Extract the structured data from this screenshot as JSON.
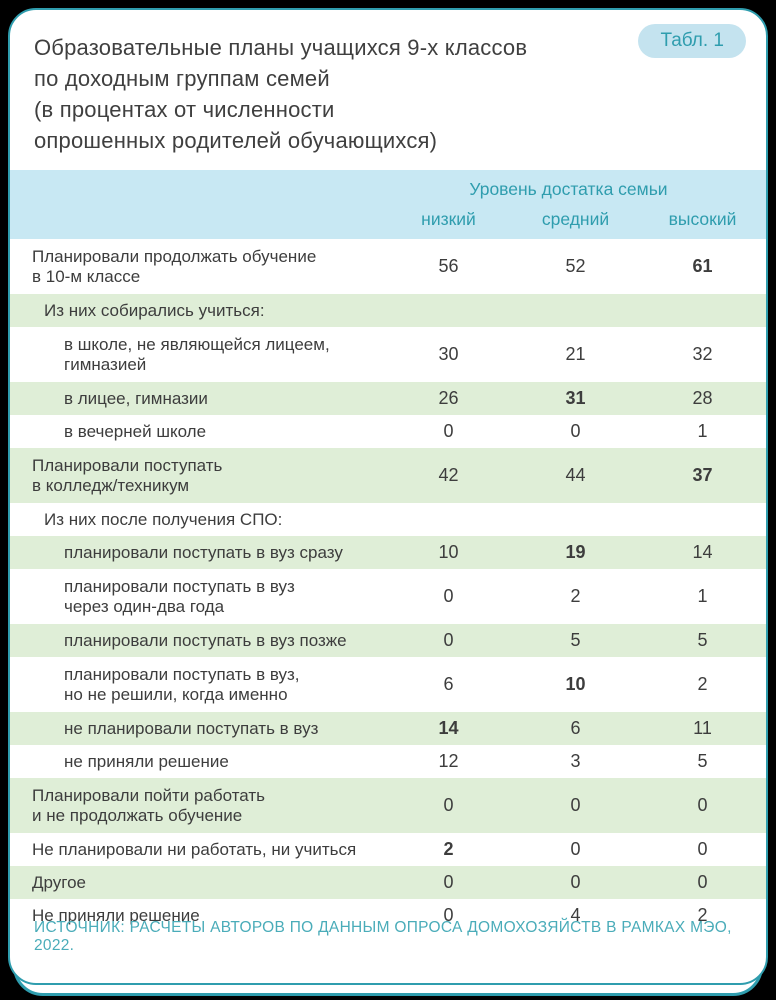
{
  "accent_colors": {
    "teal": "#2f9dae",
    "header_blue": "#c8e8f3",
    "row_green": "#dfeed7",
    "badge_bg": "#c4e3ef",
    "source_teal": "#4aacb9"
  },
  "badge": {
    "label": "Табл. 1"
  },
  "title": "Образовательные планы учащихся 9-х классов\nпо доходным группам семей\n(в процентах от численности\nопрошенных родителей обучающихся)",
  "table": {
    "group_header": "Уровень достатка семьи",
    "columns": [
      "низкий",
      "средний",
      "высокий"
    ],
    "rows": [
      {
        "label": "Планировали продолжать обучение\nв 10-м классе",
        "indent": 0,
        "shade": "white",
        "values": [
          "56",
          "52",
          "61"
        ],
        "bold": [
          false,
          false,
          true
        ]
      },
      {
        "label": "Из них собирались учиться:",
        "indent": 1,
        "shade": "green",
        "values": [
          "",
          "",
          ""
        ],
        "bold": [
          false,
          false,
          false
        ]
      },
      {
        "label": "в школе, не являющейся лицеем,\nгимназией",
        "indent": 2,
        "shade": "white",
        "values": [
          "30",
          "21",
          "32"
        ],
        "bold": [
          false,
          false,
          false
        ]
      },
      {
        "label": "в лицее, гимназии",
        "indent": 2,
        "shade": "green",
        "values": [
          "26",
          "31",
          "28"
        ],
        "bold": [
          false,
          true,
          false
        ]
      },
      {
        "label": "в вечерней школе",
        "indent": 2,
        "shade": "white",
        "values": [
          "0",
          "0",
          "1"
        ],
        "bold": [
          false,
          false,
          false
        ]
      },
      {
        "label": "Планировали поступать\nв колледж/техникум",
        "indent": 0,
        "shade": "green",
        "values": [
          "42",
          "44",
          "37"
        ],
        "bold": [
          false,
          false,
          true
        ]
      },
      {
        "label": "Из них после получения СПО:",
        "indent": 1,
        "shade": "white",
        "values": [
          "",
          "",
          ""
        ],
        "bold": [
          false,
          false,
          false
        ]
      },
      {
        "label": "планировали поступать в вуз сразу",
        "indent": 2,
        "shade": "green",
        "values": [
          "10",
          "19",
          "14"
        ],
        "bold": [
          false,
          true,
          false
        ]
      },
      {
        "label": "планировали поступать в вуз\nчерез один-два года",
        "indent": 2,
        "shade": "white",
        "values": [
          "0",
          "2",
          "1"
        ],
        "bold": [
          false,
          false,
          false
        ]
      },
      {
        "label": "планировали поступать в вуз позже",
        "indent": 2,
        "shade": "green",
        "values": [
          "0",
          "5",
          "5"
        ],
        "bold": [
          false,
          false,
          false
        ]
      },
      {
        "label": "планировали поступать в вуз,\nно не решили, когда именно",
        "indent": 2,
        "shade": "white",
        "values": [
          "6",
          "10",
          "2"
        ],
        "bold": [
          false,
          true,
          false
        ]
      },
      {
        "label": "не планировали поступать в вуз",
        "indent": 2,
        "shade": "green",
        "values": [
          "14",
          "6",
          "11"
        ],
        "bold": [
          true,
          false,
          false
        ]
      },
      {
        "label": "не приняли решение",
        "indent": 2,
        "shade": "white",
        "values": [
          "12",
          "3",
          "5"
        ],
        "bold": [
          false,
          false,
          false
        ]
      },
      {
        "label": "Планировали пойти работать\nи не продолжать обучение",
        "indent": 0,
        "shade": "green",
        "values": [
          "0",
          "0",
          "0"
        ],
        "bold": [
          false,
          false,
          false
        ]
      },
      {
        "label": "Не планировали ни работать, ни учиться",
        "indent": 0,
        "shade": "white",
        "values": [
          "2",
          "0",
          "0"
        ],
        "bold": [
          true,
          false,
          false
        ]
      },
      {
        "label": "Другое",
        "indent": 0,
        "shade": "green",
        "values": [
          "0",
          "0",
          "0"
        ],
        "bold": [
          false,
          false,
          false
        ]
      },
      {
        "label": "Не приняли решение",
        "indent": 0,
        "shade": "white",
        "values": [
          "0",
          "4",
          "2"
        ],
        "bold": [
          false,
          false,
          false
        ]
      }
    ]
  },
  "source": "ИСТОЧНИК: РАСЧЕТЫ АВТОРОВ ПО ДАННЫМ ОПРОСА ДОМОХОЗЯЙСТВ В РАМКАХ МЭО, 2022."
}
